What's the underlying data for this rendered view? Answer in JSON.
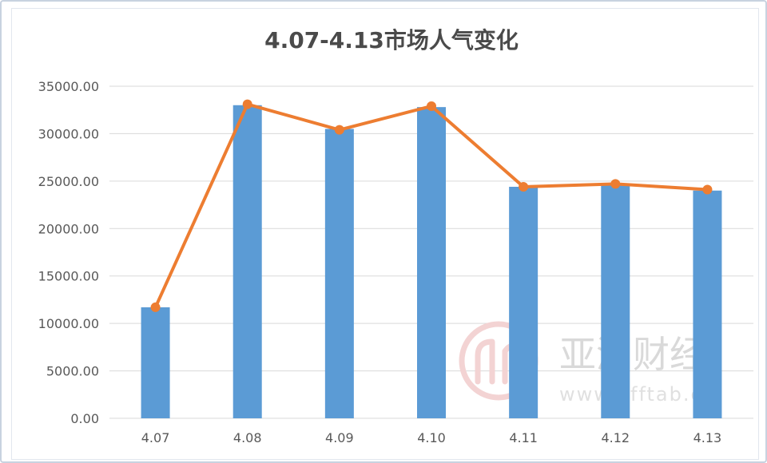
{
  "chart_data": {
    "type": "bar",
    "title": "4.07-4.13市场人气变化",
    "categories": [
      "4.07",
      "4.08",
      "4.09",
      "4.10",
      "4.11",
      "4.12",
      "4.13"
    ],
    "series": [
      {
        "type": "bar",
        "color": "#5b9bd5",
        "values": [
          11700,
          33000,
          30500,
          32800,
          24400,
          24700,
          24000
        ]
      },
      {
        "type": "line",
        "color": "#ed7d31",
        "values": [
          11700,
          33100,
          30400,
          32900,
          24400,
          24700,
          24100
        ]
      }
    ],
    "ylim": [
      0,
      35000
    ],
    "yticks": [
      "0.00",
      "5000.00",
      "10000.00",
      "15000.00",
      "20000.00",
      "25000.00",
      "30000.00",
      "35000.00"
    ],
    "grid": true,
    "legend": "none"
  },
  "watermark": {
    "logo_text": "亚洲财经",
    "url_text": "www.afftab.cn",
    "logo_icon": "circle-logo-icon"
  }
}
